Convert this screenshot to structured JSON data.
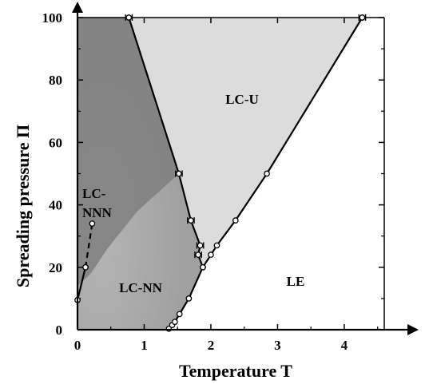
{
  "chart_data": {
    "type": "scatter",
    "xlabel": "Temperature T",
    "ylabel": "Spreading pressure Π",
    "xlim": [
      0,
      4.6
    ],
    "ylim": [
      0,
      100
    ],
    "x_ticks": [
      0,
      1,
      2,
      3,
      4
    ],
    "y_ticks": [
      0,
      20,
      40,
      60,
      80,
      100
    ],
    "grid": false,
    "region_labels": [
      "LC-U",
      "LC-NNN",
      "LC-NN",
      "LE"
    ],
    "region_colors": {
      "LC-NNN": "#7f7f7f",
      "LC-NN": "#a6a6a6",
      "LC-U": "#dcdcdc",
      "LE": "#ffffff"
    },
    "series": [
      {
        "line": "solid",
        "points": [
          {
            "x": 0.0,
            "y": 9.5
          },
          {
            "x": 0.12,
            "y": 20
          }
        ]
      },
      {
        "line": "dashed",
        "points": [
          {
            "x": 0.12,
            "y": 20
          },
          {
            "x": 0.22,
            "y": 34
          }
        ]
      },
      {
        "line": "solid",
        "points": [
          {
            "x": 1.37,
            "y": 0.3
          },
          {
            "x": 1.42,
            "y": 1.5
          },
          {
            "x": 1.46,
            "y": 2.5
          },
          {
            "x": 1.53,
            "y": 5
          },
          {
            "x": 1.67,
            "y": 10
          },
          {
            "x": 1.88,
            "y": 20
          }
        ]
      },
      {
        "line": "solid",
        "points": [
          {
            "x": 1.88,
            "y": 20
          },
          {
            "x": 2.0,
            "y": 24
          },
          {
            "x": 2.09,
            "y": 27
          },
          {
            "x": 2.37,
            "y": 35
          },
          {
            "x": 2.84,
            "y": 50
          },
          {
            "x": 4.27,
            "y": 100
          }
        ]
      },
      {
        "line": "solid",
        "error_bars": true,
        "points": [
          {
            "x": 0.77,
            "y": 100,
            "xerr": 0.05
          },
          {
            "x": 1.52,
            "y": 50,
            "xerr": 0.05
          },
          {
            "x": 1.7,
            "y": 35,
            "xerr": 0.05
          },
          {
            "x": 1.84,
            "y": 27,
            "xerr": 0.05
          },
          {
            "x": 1.81,
            "y": 24,
            "xerr": 0.05
          },
          {
            "x": 1.88,
            "y": 20,
            "xerr": 0.0
          }
        ]
      },
      {
        "line": "none",
        "error_bars": true,
        "points": [
          {
            "x": 4.27,
            "y": 100,
            "xerr": 0.05
          }
        ]
      }
    ]
  }
}
